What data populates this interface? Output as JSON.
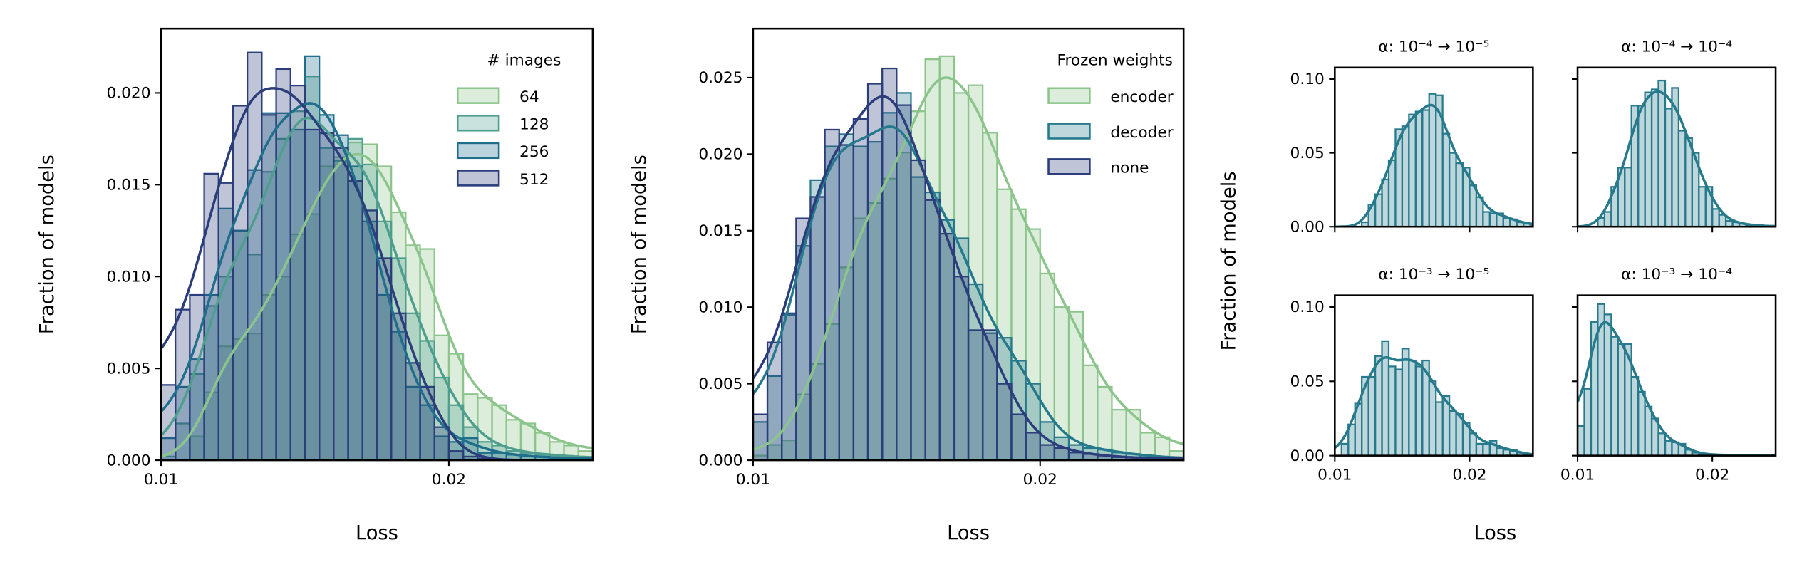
{
  "colors": {
    "64": "#8cc58c",
    "128": "#4e9e8e",
    "256": "#1f6e8c",
    "512": "#2b3e7b",
    "encoder": "#8cc58c",
    "decoder": "#25798c",
    "none": "#2b3e7b",
    "alpha_panel": "#277a8c"
  },
  "chart_data": [
    {
      "type": "histogram",
      "xlabel": "Loss",
      "ylabel": "Fraction of models",
      "xlim": [
        0.01,
        0.025
      ],
      "ylim": [
        0,
        0.0235
      ],
      "xticks": [
        0.01,
        0.02
      ],
      "xtick_labels": [
        "0.01",
        "0.02"
      ],
      "yticks": [
        0,
        0.005,
        0.01,
        0.015,
        0.02
      ],
      "ytick_labels": [
        "0.000",
        "0.005",
        "0.010",
        "0.015",
        "0.020"
      ],
      "bin_start": 0.01,
      "bin_width": 0.0005,
      "kde": true,
      "legend": {
        "title": "# images",
        "placement": "top-right"
      },
      "series": [
        {
          "name": "64",
          "color_key": "64",
          "values": [
            0,
            0,
            0.0013,
            0.0037,
            0.0062,
            0.0066,
            0.0069,
            0.009,
            0.01,
            0.0123,
            0.0134,
            0.016,
            0.0165,
            0.0173,
            0.0172,
            0.016,
            0.0135,
            0.0117,
            0.0115,
            0.0068,
            0.0058,
            0.0036,
            0.0034,
            0.003,
            0.0022,
            0.002,
            0.0015,
            0.001,
            0.0008,
            0.0005
          ]
        },
        {
          "name": "128",
          "color_key": "128",
          "values": [
            0.0002,
            0.002,
            0.0047,
            0.0084,
            0.01,
            0.0125,
            0.0112,
            0.0157,
            0.0175,
            0.019,
            0.0209,
            0.017,
            0.0163,
            0.0175,
            0.0161,
            0.013,
            0.011,
            0.008,
            0.0065,
            0.0045,
            0.003,
            0.0018,
            0.001,
            0.0008,
            0.0005,
            0.0004,
            0.0003,
            0.0003,
            0.0002,
            0.0001
          ]
        },
        {
          "name": "256",
          "color_key": "256",
          "values": [
            0.0012,
            0.004,
            0.0055,
            0.009,
            0.0137,
            0.0125,
            0.0158,
            0.0189,
            0.0189,
            0.018,
            0.022,
            0.0188,
            0.0177,
            0.016,
            0.013,
            0.009,
            0.007,
            0.004,
            0.003,
            0.0013,
            0.001,
            0.0012,
            0.0004,
            0.0004,
            0.0003,
            0.0002,
            0.0002,
            0.0001,
            0.0001,
            0.0001
          ]
        },
        {
          "name": "512",
          "color_key": "512",
          "values": [
            0.0041,
            0.0082,
            0.009,
            0.0156,
            0.0151,
            0.0193,
            0.0222,
            0.0188,
            0.0213,
            0.0204,
            0.018,
            0.0178,
            0.017,
            0.0152,
            0.0136,
            0.011,
            0.008,
            0.0053,
            0.004,
            0.0018,
            0.0005,
            0.0002,
            0.0001,
            0,
            0,
            0,
            0,
            0,
            0,
            0
          ]
        }
      ]
    },
    {
      "type": "histogram",
      "xlabel": "Loss",
      "ylabel": "Fraction of models",
      "xlim": [
        0.01,
        0.025
      ],
      "ylim": [
        0,
        0.0282
      ],
      "xticks": [
        0.01,
        0.02
      ],
      "xtick_labels": [
        "0.01",
        "0.02"
      ],
      "yticks": [
        0,
        0.005,
        0.01,
        0.015,
        0.02,
        0.025
      ],
      "ytick_labels": [
        "0.000",
        "0.005",
        "0.010",
        "0.015",
        "0.020",
        "0.025"
      ],
      "bin_start": 0.01,
      "bin_width": 0.0005,
      "kde": true,
      "legend": {
        "title": "Frozen weights",
        "placement": "top-right"
      },
      "series": [
        {
          "name": "encoder",
          "color_key": "encoder",
          "values": [
            0.0003,
            0.001,
            0.0013,
            0.0043,
            0.0063,
            0.0089,
            0.0126,
            0.0158,
            0.0168,
            0.0184,
            0.0201,
            0.0228,
            0.0262,
            0.0264,
            0.024,
            0.0245,
            0.0214,
            0.0177,
            0.0164,
            0.0151,
            0.0122,
            0.01,
            0.0097,
            0.0062,
            0.0048,
            0.0033,
            0.0033,
            0.0018,
            0.0015,
            0.0006
          ]
        },
        {
          "name": "decoder",
          "color_key": "decoder",
          "values": [
            0.0025,
            0.0055,
            0.0095,
            0.014,
            0.0183,
            0.0205,
            0.0213,
            0.0205,
            0.0208,
            0.0227,
            0.024,
            0.0185,
            0.0175,
            0.0157,
            0.0145,
            0.0115,
            0.0083,
            0.008,
            0.0065,
            0.005,
            0.0025,
            0.0015,
            0.001,
            0.0008,
            0.0007,
            0.0005,
            0.0004,
            0.0003,
            0.0002,
            0.0001
          ]
        },
        {
          "name": "none",
          "color_key": "none",
          "values": [
            0.003,
            0.0077,
            0.0096,
            0.0158,
            0.0172,
            0.0216,
            0.0206,
            0.0223,
            0.0246,
            0.0256,
            0.0232,
            0.0196,
            0.017,
            0.0148,
            0.012,
            0.0085,
            0.0085,
            0.005,
            0.003,
            0.0018,
            0.001,
            0.0008,
            0.0005,
            0.0004,
            0.0003,
            0.0002,
            0.0002,
            0.0001,
            0.0001,
            0.0001
          ]
        }
      ]
    },
    {
      "type": "histogram",
      "title": "α: 10⁻⁴ → 10⁻⁵",
      "xlim": [
        0.01,
        0.0247
      ],
      "ylim": [
        0,
        0.1078
      ],
      "yticks": [
        0,
        0.05,
        0.1
      ],
      "ytick_labels": [
        "0.00",
        "0.05",
        "0.10"
      ],
      "xticks": [
        0.01,
        0.02
      ],
      "bin_start": 0.01,
      "bin_width": 0.0005,
      "kde": true,
      "color_key": "alpha_panel",
      "values": [
        0,
        0,
        0,
        0,
        0.003,
        0.015,
        0.022,
        0.032,
        0.045,
        0.066,
        0.068,
        0.076,
        0.078,
        0.079,
        0.09,
        0.089,
        0.063,
        0.05,
        0.043,
        0.04,
        0.028,
        0.02,
        0.01,
        0.009,
        0.009,
        0.006,
        0.005,
        0.003,
        0.002,
        0.001
      ]
    },
    {
      "type": "histogram",
      "title": "α: 10⁻⁴ → 10⁻⁴",
      "xlim": [
        0.01,
        0.0247
      ],
      "ylim": [
        0,
        0.1078
      ],
      "yticks": [
        0,
        0.05,
        0.1
      ],
      "xticks": [
        0.01,
        0.02
      ],
      "bin_start": 0.01,
      "bin_width": 0.0005,
      "kde": true,
      "color_key": "alpha_panel",
      "values": [
        0,
        0,
        0,
        0.006,
        0.01,
        0.027,
        0.04,
        0.04,
        0.082,
        0.082,
        0.091,
        0.093,
        0.099,
        0.08,
        0.094,
        0.065,
        0.06,
        0.05,
        0.027,
        0.027,
        0.012,
        0.008,
        0.004,
        0.003,
        0.002,
        0.001,
        0.001,
        0.0005,
        0.0003,
        0.0002
      ]
    },
    {
      "type": "histogram",
      "title": "α: 10⁻³ → 10⁻⁵",
      "xlim": [
        0.01,
        0.0247
      ],
      "ylim": [
        0,
        0.1078
      ],
      "yticks": [
        0,
        0.05,
        0.1
      ],
      "ytick_labels": [
        "0.00",
        "0.05",
        "0.10"
      ],
      "xticks": [
        0.01,
        0.02
      ],
      "xtick_labels": [
        "0.01",
        "0.02"
      ],
      "bin_start": 0.01,
      "bin_width": 0.0005,
      "kde": true,
      "color_key": "alpha_panel",
      "values": [
        0,
        0.008,
        0.021,
        0.035,
        0.053,
        0.053,
        0.067,
        0.077,
        0.06,
        0.058,
        0.072,
        0.064,
        0.06,
        0.064,
        0.05,
        0.036,
        0.04,
        0.03,
        0.028,
        0.022,
        0.015,
        0.008,
        0.008,
        0.01,
        0.005,
        0.004,
        0.004,
        0.002,
        0.001,
        0
      ]
    },
    {
      "type": "histogram",
      "title": "α: 10⁻³ → 10⁻⁴",
      "xlim": [
        0.01,
        0.0247
      ],
      "ylim": [
        0,
        0.1078
      ],
      "yticks": [
        0,
        0.05,
        0.1
      ],
      "xticks": [
        0.01,
        0.02
      ],
      "xtick_labels": [
        "0.01",
        "0.02"
      ],
      "bin_start": 0.01,
      "bin_width": 0.0005,
      "kde": true,
      "color_key": "alpha_panel",
      "values": [
        0.02,
        0.045,
        0.09,
        0.102,
        0.095,
        0.08,
        0.075,
        0.075,
        0.053,
        0.043,
        0.033,
        0.025,
        0.015,
        0.01,
        0.009,
        0.008,
        0.004,
        0.002,
        0.001,
        0.001,
        0.0005,
        0.0005,
        0.0003,
        0.0002,
        0.0001,
        0,
        0,
        0,
        0,
        0
      ]
    }
  ],
  "shared_labels": {
    "small_ylabel": "Fraction of models",
    "small_xlabel": "Loss"
  }
}
